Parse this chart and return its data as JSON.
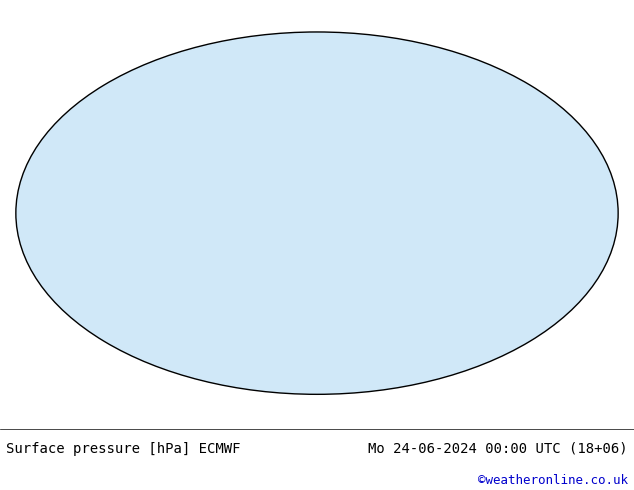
{
  "title_left": "Surface pressure [hPa] ECMWF",
  "title_right": "Mo 24-06-2024 00:00 UTC (18+06)",
  "copyright": "©weatheronline.co.uk",
  "bg_color": "#ffffff",
  "map_bg_ocean": "#ddeeff",
  "map_bg_land": "#cceecc",
  "contour_interval": 4,
  "pressure_min": 940,
  "pressure_max": 1044,
  "highlight_pressure": 1013,
  "color_below_1013": "#0000cc",
  "color_above_1013": "#cc0000",
  "color_at_1013": "#000000",
  "font_size_title": 10,
  "font_size_copyright": 9,
  "bottom_bar_height": 0.13,
  "label_size": 7
}
